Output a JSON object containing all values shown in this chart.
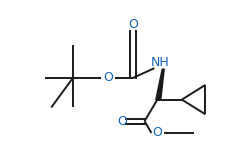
{
  "bg_color": "#ffffff",
  "line_color": "#1a1a1a",
  "heteroatom_color": "#1464b4",
  "line_width": 1.4,
  "figsize": [
    2.41,
    1.55
  ],
  "dpi": 100,
  "xlim": [
    0,
    241
  ],
  "ylim": [
    0,
    155
  ]
}
